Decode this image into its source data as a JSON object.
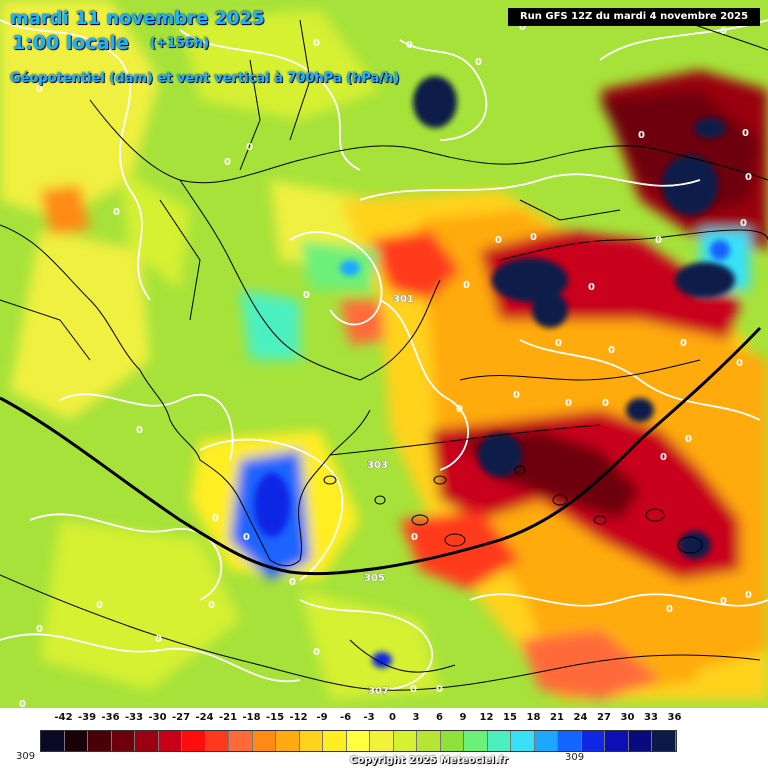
{
  "header": {
    "date": "mardi 11 novembre 2025",
    "time": "1:00 locale",
    "lead": "(+156h)",
    "parameter": "Géopotentiel (dam) et vent vertical à 700hPa (hPa/h)",
    "run": "Run GFS 12Z du mardi 4 novembre 2025"
  },
  "legend": {
    "ticks": [
      "-42",
      "-39",
      "-36",
      "-33",
      "-30",
      "-27",
      "-24",
      "-21",
      "-18",
      "-15",
      "-12",
      "-9",
      "-6",
      "-3",
      "0",
      "3",
      "6",
      "9",
      "12",
      "15",
      "18",
      "21",
      "24",
      "27",
      "30",
      "33",
      "36"
    ],
    "colors": [
      "#0a0a26",
      "#1a0008",
      "#4a0008",
      "#6e000c",
      "#9a0010",
      "#c8001a",
      "#ff0c0c",
      "#ff3a1c",
      "#ff6a3a",
      "#ff8a14",
      "#ffaa10",
      "#ffd21c",
      "#ffee22",
      "#ffff40",
      "#f2f23c",
      "#d6f032",
      "#b6e632",
      "#8ee03a",
      "#6cf07a",
      "#4cf0c0",
      "#38e0f8",
      "#1ca8ff",
      "#1464ff",
      "#1028e6",
      "#0c10b4",
      "#0a0a7c",
      "#0c1a4a"
    ],
    "left_number": "309",
    "right_number": "309"
  },
  "contour_labels": [
    "301",
    "303",
    "305",
    "307"
  ],
  "zero_labels": [
    "0"
  ],
  "copyright": "Copyright 2025 Meteociel.fr"
}
